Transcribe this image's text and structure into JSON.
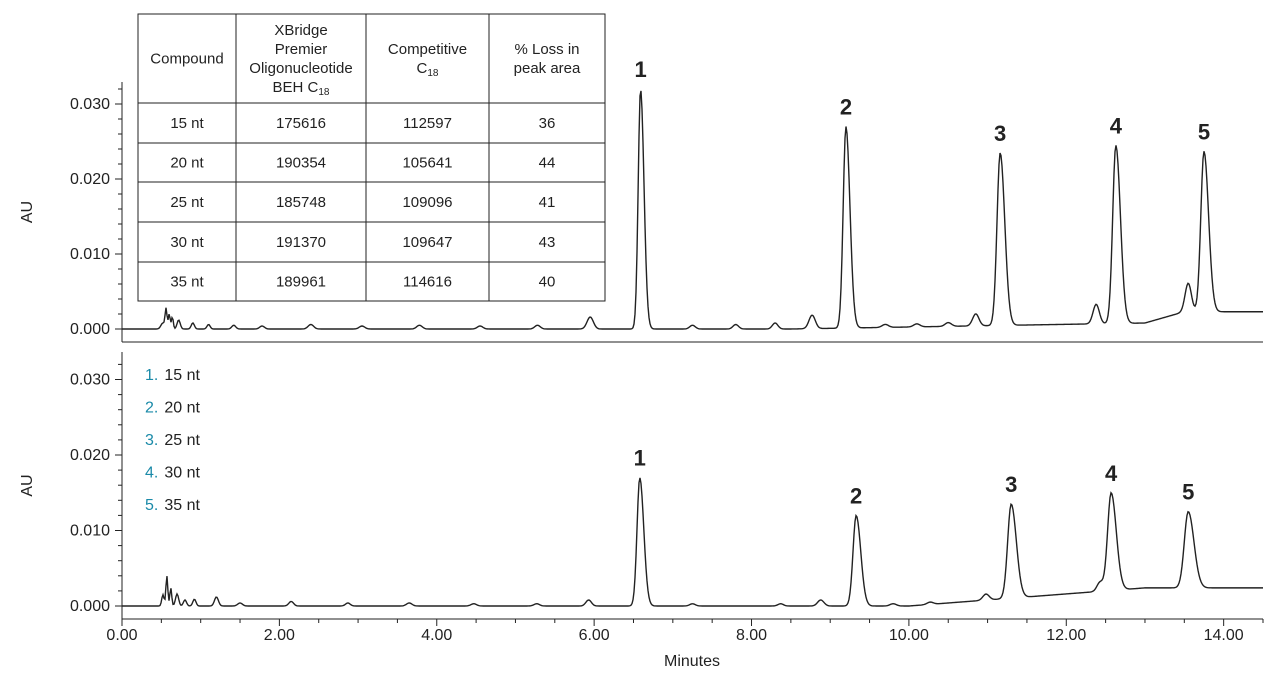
{
  "chart_data": {
    "type": "line",
    "xlabel": "Minutes",
    "xlim": [
      0,
      14.5
    ],
    "x_ticks": [
      "0.00",
      "2.00",
      "4.00",
      "6.00",
      "8.00",
      "10.00",
      "12.00",
      "14.00"
    ],
    "x_tick_values": [
      0,
      2,
      4,
      6,
      8,
      10,
      12,
      14
    ],
    "panels": [
      {
        "id": "top",
        "ylabel": "AU",
        "ylim": [
          -0.0015,
          0.033
        ],
        "y_ticks": [
          "0.000",
          "0.010",
          "0.020",
          "0.030"
        ],
        "y_tick_values": [
          0,
          0.01,
          0.02,
          0.03
        ],
        "peaks": [
          {
            "label": "1",
            "x": 6.59,
            "y": 0.032
          },
          {
            "label": "2",
            "x": 9.2,
            "y": 0.027
          },
          {
            "label": "3",
            "x": 11.16,
            "y": 0.0235
          },
          {
            "label": "4",
            "x": 12.63,
            "y": 0.0245
          },
          {
            "label": "5",
            "x": 13.75,
            "y": 0.0237
          }
        ],
        "table": {
          "headers": [
            "Compound",
            "XBridge Premier Oligonucleotide BEH C18",
            "Competitive C18",
            "% Loss in peak area"
          ],
          "header_lines": [
            [
              "Compound"
            ],
            [
              "XBridge",
              "Premier",
              "Oligonucleotide",
              "BEH C"
            ],
            [
              "Competitive",
              "C"
            ],
            [
              "% Loss in",
              "peak area"
            ]
          ],
          "subscript": "18",
          "rows": [
            [
              "15 nt",
              "175616",
              "112597",
              "36"
            ],
            [
              "20 nt",
              "190354",
              "105641",
              "44"
            ],
            [
              "25 nt",
              "185748",
              "109096",
              "41"
            ],
            [
              "30 nt",
              "191370",
              "109647",
              "43"
            ],
            [
              "35 nt",
              "189961",
              "114616",
              "40"
            ]
          ]
        }
      },
      {
        "id": "bottom",
        "ylabel": "AU",
        "ylim": [
          -0.001,
          0.033
        ],
        "y_ticks": [
          "0.000",
          "0.010",
          "0.020",
          "0.030"
        ],
        "y_tick_values": [
          0,
          0.01,
          0.02,
          0.03
        ],
        "peaks": [
          {
            "label": "1",
            "x": 6.58,
            "y": 0.017
          },
          {
            "label": "2",
            "x": 9.33,
            "y": 0.012
          },
          {
            "label": "3",
            "x": 11.3,
            "y": 0.0135
          },
          {
            "label": "4",
            "x": 12.57,
            "y": 0.015
          },
          {
            "label": "5",
            "x": 13.55,
            "y": 0.0125
          }
        ],
        "legend": [
          {
            "num": "1.",
            "text": "15 nt"
          },
          {
            "num": "2.",
            "text": "20 nt"
          },
          {
            "num": "3.",
            "text": "25 nt"
          },
          {
            "num": "4.",
            "text": "30 nt"
          },
          {
            "num": "5.",
            "text": "35 nt"
          }
        ]
      }
    ]
  },
  "colors": {
    "trace": "#222222",
    "legend_number": "#1a8aa8",
    "axis": "#222222"
  }
}
